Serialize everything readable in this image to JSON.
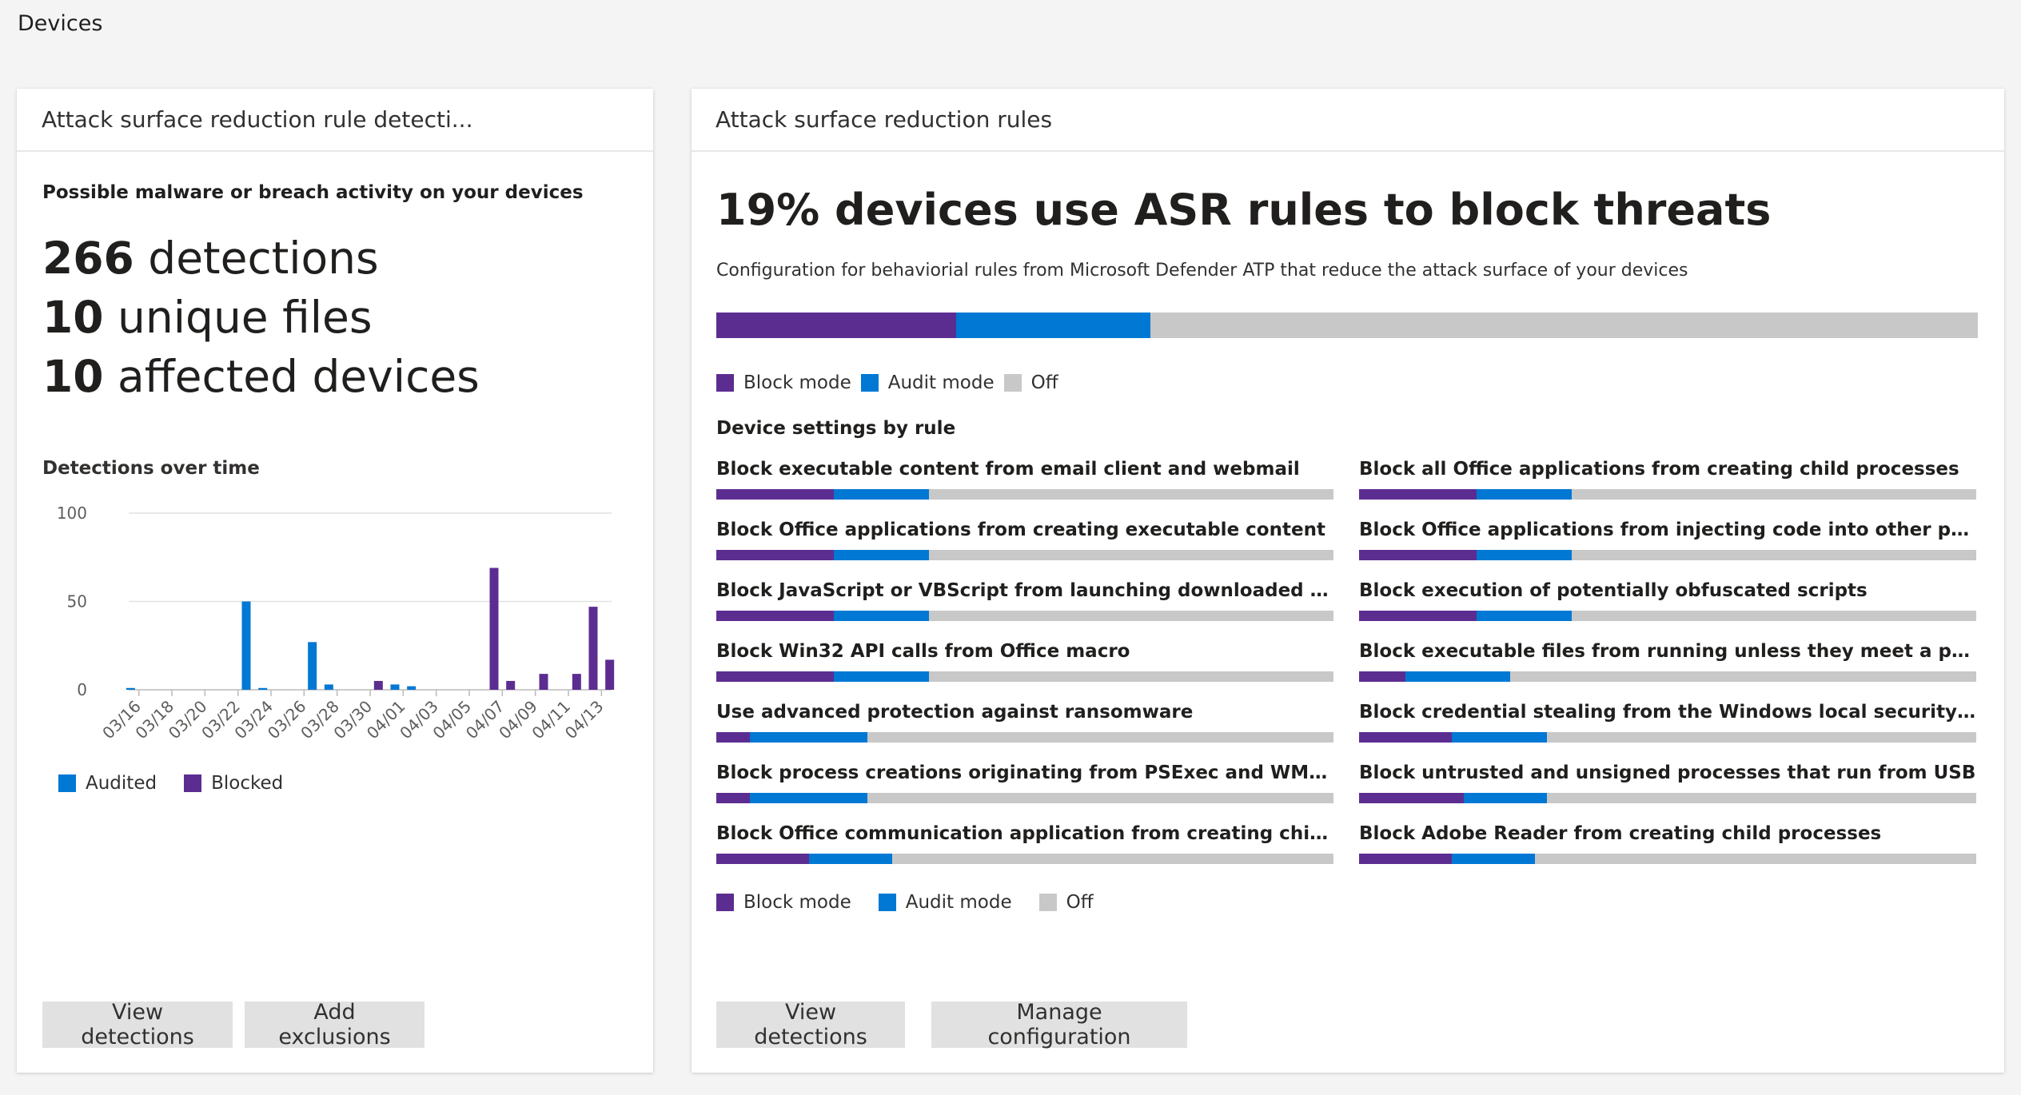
{
  "page": {
    "title": "Devices"
  },
  "colors": {
    "block": "#5c2d91",
    "audit": "#0078d4",
    "off": "#c8c8c8"
  },
  "left_card": {
    "header": "Attack surface reduction rule detecti...",
    "subheading": "Possible malware or breach activity on your devices",
    "stats": [
      {
        "number": "266",
        "label": " detections"
      },
      {
        "number": "10",
        "label": " unique files"
      },
      {
        "number": "10",
        "label": " affected devices"
      }
    ],
    "chart_title": "Detections over time",
    "legend": {
      "audited": "Audited",
      "blocked": "Blocked"
    },
    "buttons": {
      "view": "View detections",
      "exclusions": "Add exclusions"
    }
  },
  "chart_data": {
    "type": "bar",
    "title": "Detections over time",
    "xlabel": "",
    "ylabel": "",
    "ylim": [
      0,
      100
    ],
    "yticks": [
      0,
      50,
      100
    ],
    "categories": [
      "03/16",
      "03/17",
      "03/18",
      "03/19",
      "03/20",
      "03/21",
      "03/22",
      "03/23",
      "03/24",
      "03/25",
      "03/26",
      "03/27",
      "03/28",
      "03/29",
      "03/30",
      "03/31",
      "04/01",
      "04/02",
      "04/03",
      "04/04",
      "04/05",
      "04/06",
      "04/07",
      "04/08",
      "04/09",
      "04/10",
      "04/11",
      "04/12",
      "04/13",
      "04/14"
    ],
    "tick_labels": [
      "03/16",
      "03/18",
      "03/20",
      "03/22",
      "03/24",
      "03/26",
      "03/28",
      "03/30",
      "04/01",
      "04/03",
      "04/05",
      "04/07",
      "04/09",
      "04/11",
      "04/13"
    ],
    "series": [
      {
        "name": "Audited",
        "color": "#0078d4",
        "values": [
          1,
          0,
          0,
          0,
          0,
          0,
          0,
          50,
          1,
          0,
          0,
          27,
          3,
          0,
          0,
          0,
          3,
          2,
          0,
          0,
          0,
          0,
          0,
          0,
          0,
          0,
          0,
          0,
          0,
          0
        ]
      },
      {
        "name": "Blocked",
        "color": "#5c2d91",
        "values": [
          0,
          0,
          0,
          0,
          0,
          0,
          0,
          0,
          0,
          0,
          0,
          0,
          0,
          0,
          0,
          5,
          0,
          0,
          0,
          0,
          0,
          0,
          69,
          5,
          0,
          9,
          0,
          9,
          47,
          17
        ]
      }
    ],
    "grid": true,
    "legend": "bottom-left"
  },
  "right_card": {
    "header": "Attack surface reduction rules",
    "headline": "19% devices use ASR rules to block threats",
    "description": "Configuration for behaviorial rules from Microsoft Defender ATP that reduce the attack surface of your devices",
    "overall": {
      "block": 19,
      "audit": 15.4,
      "off": 65.6
    },
    "legend": {
      "block": "Block mode",
      "audit": "Audit mode",
      "off": "Off"
    },
    "rules_title": "Device settings by rule",
    "rules": [
      {
        "label": "Block executable content from email client and webmail",
        "block": 19,
        "audit": 15.5,
        "off": 65.5
      },
      {
        "label": "Block all Office applications from creating child processes",
        "block": 19,
        "audit": 15.5,
        "off": 65.5
      },
      {
        "label": "Block Office applications from creating executable content",
        "block": 19,
        "audit": 15.5,
        "off": 65.5
      },
      {
        "label": "Block Office applications from injecting code into other processes",
        "block": 19,
        "audit": 15.5,
        "off": 65.5
      },
      {
        "label": "Block JavaScript or VBScript from launching downloaded execut...",
        "block": 19,
        "audit": 15.5,
        "off": 65.5
      },
      {
        "label": "Block execution of potentially obfuscated scripts",
        "block": 19,
        "audit": 15.5,
        "off": 65.5
      },
      {
        "label": "Block Win32 API calls from Office macro",
        "block": 19,
        "audit": 15.5,
        "off": 65.5
      },
      {
        "label": "Block executable files from running unless they meet a prevalen...",
        "block": 7.5,
        "audit": 17,
        "off": 75.5
      },
      {
        "label": "Use advanced protection against ransomware",
        "block": 5.5,
        "audit": 19,
        "off": 75.5
      },
      {
        "label": "Block credential stealing from the Windows local security author...",
        "block": 15,
        "audit": 15.5,
        "off": 69.5
      },
      {
        "label": "Block process creations originating from PSExec and WMI comm...",
        "block": 5.5,
        "audit": 19,
        "off": 75.5
      },
      {
        "label": "Block untrusted and unsigned processes that run from USB",
        "block": 17,
        "audit": 13.5,
        "off": 69.5
      },
      {
        "label": "Block Office communication application from creating child proc...",
        "block": 15,
        "audit": 13.5,
        "off": 71.5
      },
      {
        "label": "Block Adobe Reader from creating child processes",
        "block": 15,
        "audit": 13.5,
        "off": 71.5
      }
    ],
    "buttons": {
      "view": "View detections",
      "manage": "Manage configuration"
    }
  }
}
